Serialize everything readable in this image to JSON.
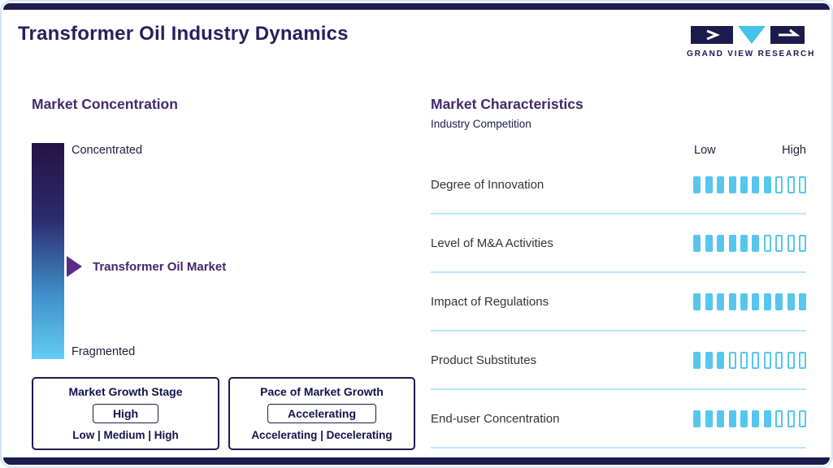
{
  "page": {
    "title": "Transformer Oil Industry Dynamics"
  },
  "logo": {
    "text": "GRAND VIEW RESEARCH"
  },
  "colors": {
    "brand_navy": "#1b1b4d",
    "brand_purple": "#3f2a6e",
    "accent_cyan": "#56c6ef",
    "separator_cyan": "#b9e6f8",
    "marker_purple": "#5a2c88",
    "gradient_top": "#251345",
    "gradient_bottom": "#63cdf2"
  },
  "left": {
    "heading": "Market Concentration",
    "scale_top": "Concentrated",
    "scale_bottom": "Fragmented",
    "marker_label": "Transformer Oil Market",
    "boxes": [
      {
        "title": "Market Growth Stage",
        "value": "High",
        "options": "Low | Medium | High"
      },
      {
        "title": "Pace of Market Growth",
        "value": "Accelerating",
        "options": "Accelerating | Decelerating"
      }
    ]
  },
  "right": {
    "heading": "Market Characteristics",
    "subheading": "Industry Competition",
    "scale_low": "Low",
    "scale_high": "High",
    "rows": [
      {
        "label": "Degree of Innovation",
        "filled": 7,
        "total": 10
      },
      {
        "label": "Level of M&A Activities",
        "filled": 6,
        "total": 10
      },
      {
        "label": "Impact of Regulations",
        "filled": 10,
        "total": 10
      },
      {
        "label": "Product Substitutes",
        "filled": 3,
        "total": 10
      },
      {
        "label": "End-user Concentration",
        "filled": 7,
        "total": 10
      }
    ]
  },
  "chart_data": {
    "type": "bar",
    "title": "Transformer Oil Industry Dynamics",
    "subtitle": "Market Characteristics - Industry Competition",
    "categories": [
      "Degree of Innovation",
      "Level of M&A Activities",
      "Impact of Regulations",
      "Product Substitutes",
      "End-user Concentration"
    ],
    "values": [
      7,
      6,
      10,
      3,
      7
    ],
    "scale": {
      "segments": 10,
      "min_label": "Low",
      "max_label": "High"
    },
    "market_concentration": {
      "scale_top": "Concentrated",
      "scale_bottom": "Fragmented",
      "marker": "Transformer Oil Market",
      "marker_position": "middle",
      "growth_stage": "High",
      "growth_stage_options": [
        "Low",
        "Medium",
        "High"
      ],
      "pace_of_growth": "Accelerating",
      "pace_options": [
        "Accelerating",
        "Decelerating"
      ]
    }
  }
}
